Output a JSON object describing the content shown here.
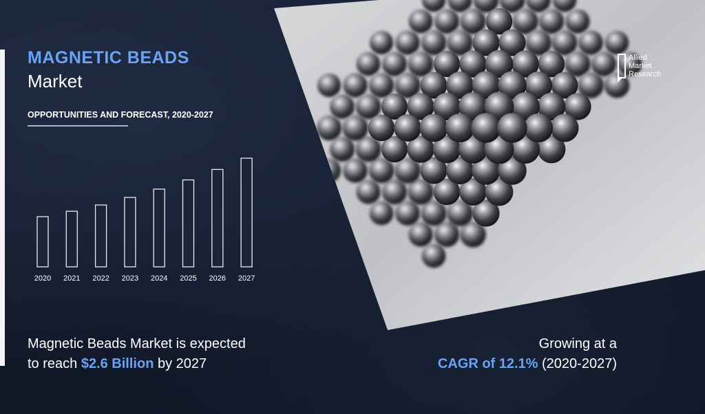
{
  "title": "MAGNETIC BEADS",
  "subtitle": "Market",
  "forecast_label": "OPPORTUNITIES AND FORECAST, 2020-2027",
  "brand": {
    "line1": "Allied",
    "line2": "Market",
    "line3": "Research"
  },
  "left_statement": {
    "line1": "Magnetic Beads Market is expected",
    "line2_pre": "to reach ",
    "value": "$2.6 Billion",
    "line2_post": " by 2027"
  },
  "right_statement": {
    "line1": "Growing at a",
    "cagr": "CAGR of 12.1%",
    "period": " (2020-2027)"
  },
  "colors": {
    "accent": "#6aa3f5",
    "bar_stroke": "#e8ecf4",
    "bar_fill": "#1b2436",
    "background": "#121a2c"
  },
  "chart_data": {
    "type": "bar",
    "categories": [
      "2020",
      "2021",
      "2022",
      "2023",
      "2024",
      "2025",
      "2026",
      "2027"
    ],
    "values": [
      1.2,
      1.33,
      1.48,
      1.66,
      1.86,
      2.08,
      2.33,
      2.6
    ],
    "ylim": [
      0,
      2.6
    ],
    "grid": false,
    "legend": "none"
  }
}
